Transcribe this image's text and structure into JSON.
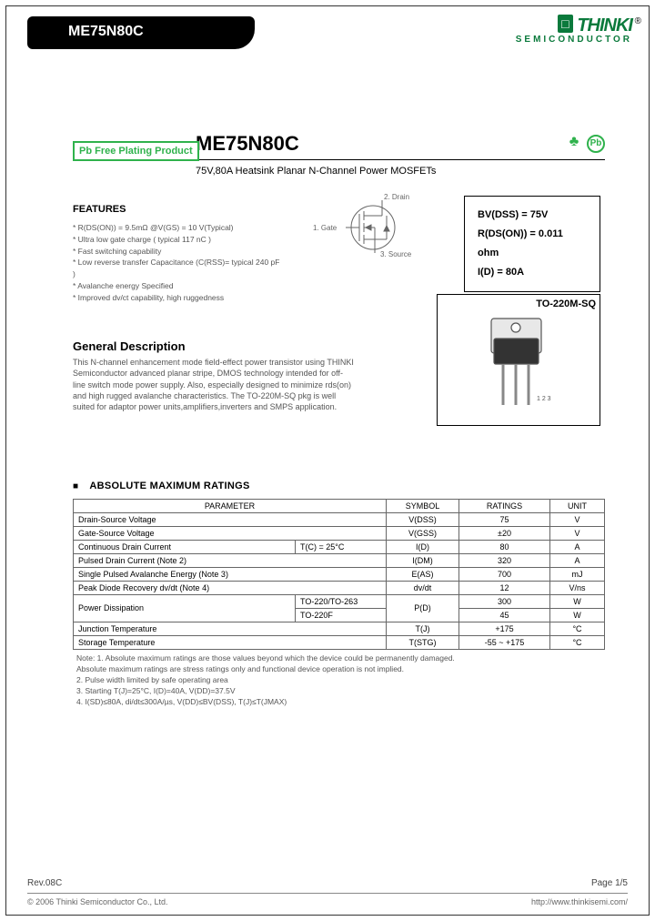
{
  "header": {
    "part_number": "ME75N80C",
    "logo_icon": "□",
    "logo_text": "THINKI",
    "logo_sub": "SEMICONDUCTOR",
    "registered": "®"
  },
  "badges": {
    "pb_free": "Pb Free Plating Product",
    "rohs_tree": "♣",
    "rohs_label": "RoHS",
    "pb_circle": "Pb"
  },
  "title": {
    "part": "ME75N80C",
    "subtitle": "75V,80A Heatsink Planar N-Channel Power MOSFETs"
  },
  "features": {
    "heading": "FEATURES",
    "items": [
      "* R(DS(ON)) = 9.5mΩ @V(GS) = 10 V(Typical)",
      "* Ultra low gate charge ( typical 117 nC )",
      "* Fast switching capability",
      "* Low reverse transfer Capacitance (C(RSS)= typical 240 pF )",
      "* Avalanche energy Specified",
      "* Improved dv/ct capability, high ruggedness"
    ]
  },
  "schematic": {
    "pin1": "1. Gate",
    "pin2": "2. Drain",
    "pin3": "3. Source"
  },
  "specs_box": {
    "l1": "BV(DSS) = 75V",
    "l2": "R(DS(ON)) = 0.011 ohm",
    "l3": "I(D) = 80A"
  },
  "general": {
    "heading": "General Description",
    "text": "This N-channel enhancement mode field-effect power transistor using THINKI Semiconductor advanced planar stripe, DMOS technology intended for off-line switch mode power supply. Also, especially designed to minimize rds(on) and high rugged avalanche characteristics. The TO-220M-SQ pkg is well suited for adaptor power units,amplifiers,inverters and SMPS application."
  },
  "package": {
    "label": "TO-220M-SQ"
  },
  "ratings_table": {
    "heading": "ABSOLUTE MAXIMUM RATINGS",
    "columns": [
      "PARAMETER",
      "SYMBOL",
      "RATINGS",
      "UNIT"
    ],
    "rows": [
      [
        "Drain-Source Voltage",
        "",
        "V(DSS)",
        "75",
        "V"
      ],
      [
        "Gate-Source Voltage",
        "",
        "V(GSS)",
        "±20",
        "V"
      ],
      [
        "Continuous Drain Current",
        "T(C) = 25°C",
        "I(D)",
        "80",
        "A"
      ],
      [
        "Pulsed Drain Current (Note 2)",
        "",
        "I(DM)",
        "320",
        "A"
      ],
      [
        "Single Pulsed Avalanche Energy (Note 3)",
        "",
        "E(AS)",
        "700",
        "mJ"
      ],
      [
        "Peak Diode Recovery dv/dt (Note 4)",
        "",
        "dv/dt",
        "12",
        "V/ns"
      ],
      [
        "Power Dissipation",
        "TO-220/TO-263",
        "P(D)",
        "300",
        "W"
      ],
      [
        "",
        "TO-220F",
        "",
        "45",
        "W"
      ],
      [
        "Junction Temperature",
        "",
        "T(J)",
        "+175",
        "°C"
      ],
      [
        "Storage Temperature",
        "",
        "T(STG)",
        "-55 ~ +175",
        "°C"
      ]
    ]
  },
  "notes": {
    "lines": [
      "Note: 1. Absolute maximum ratings are those values beyond which the device could be permanently damaged.",
      "         Absolute maximum ratings are stress ratings only and functional device operation is not implied.",
      "     2. Pulse width limited by safe operating area",
      "     3. Starting T(J)=25°C, I(D)=40A, V(DD)=37.5V",
      "     4. I(SD)≤80A, di/dt≤300A/µs, V(DD)≤BV(DSS), T(J)≤T(JMAX)"
    ]
  },
  "footer": {
    "rev": "Rev.08C",
    "page": "Page 1/5",
    "copyright": "© 2006 Thinki Semiconductor Co., Ltd.",
    "url": "http://www.thinkisemi.com/"
  },
  "colors": {
    "green": "#2fb24c",
    "dark_green": "#0b7a3c"
  }
}
